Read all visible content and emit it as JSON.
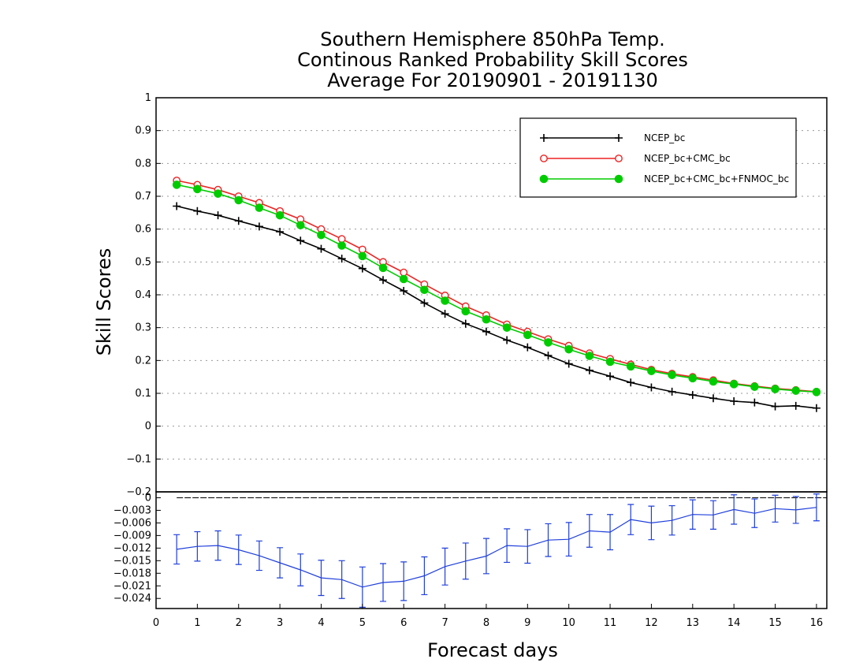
{
  "title_lines": [
    "Southern Hemisphere 850hPa Temp.",
    "Continous Ranked Probability Skill Scores",
    "Average For 20190901 - 20191130"
  ],
  "chart_data": [
    {
      "type": "line",
      "panel": "main",
      "xlabel": "Forecast days",
      "ylabel": "Skill Scores",
      "xlim": [
        0,
        16.25
      ],
      "ylim": [
        -0.2,
        1
      ],
      "y_ticks": [
        "-0.2",
        "-0.1",
        "0",
        "0.1",
        "0.2",
        "0.3",
        "0.4",
        "0.5",
        "0.6",
        "0.7",
        "0.8",
        "0.9",
        "1"
      ],
      "grid": "horizontal dotted",
      "legend_position": "top-right",
      "x": [
        0.5,
        1,
        1.5,
        2,
        2.5,
        3,
        3.5,
        4,
        4.5,
        5,
        5.5,
        6,
        6.5,
        7,
        7.5,
        8,
        8.5,
        9,
        9.5,
        10,
        10.5,
        11,
        11.5,
        12,
        12.5,
        13,
        13.5,
        14,
        14.5,
        15,
        15.5,
        16
      ],
      "series": [
        {
          "name": "NCEP_bc",
          "color": "#000000",
          "marker": "plus",
          "values": [
            0.67,
            0.655,
            0.642,
            0.625,
            0.608,
            0.592,
            0.565,
            0.54,
            0.51,
            0.48,
            0.445,
            0.412,
            0.375,
            0.342,
            0.312,
            0.288,
            0.262,
            0.24,
            0.215,
            0.19,
            0.17,
            0.152,
            0.133,
            0.118,
            0.105,
            0.095,
            0.085,
            0.076,
            0.072,
            0.06,
            0.062,
            0.055
          ]
        },
        {
          "name": "NCEP_bc+CMC_bc",
          "color": "#ee2222",
          "marker": "open-circle",
          "values": [
            0.748,
            0.735,
            0.72,
            0.7,
            0.68,
            0.655,
            0.63,
            0.6,
            0.57,
            0.538,
            0.5,
            0.468,
            0.432,
            0.398,
            0.365,
            0.338,
            0.31,
            0.288,
            0.265,
            0.245,
            0.222,
            0.205,
            0.188,
            0.172,
            0.16,
            0.15,
            0.14,
            0.13,
            0.122,
            0.115,
            0.11,
            0.105
          ]
        },
        {
          "name": "NCEP_bc+CMC_bc+FNMOC_bc",
          "color": "#00cc00",
          "marker": "filled-circle",
          "values": [
            0.735,
            0.722,
            0.708,
            0.688,
            0.665,
            0.642,
            0.612,
            0.582,
            0.55,
            0.518,
            0.482,
            0.448,
            0.415,
            0.382,
            0.35,
            0.325,
            0.3,
            0.278,
            0.255,
            0.234,
            0.214,
            0.196,
            0.182,
            0.168,
            0.156,
            0.146,
            0.136,
            0.128,
            0.12,
            0.113,
            0.108,
            0.104
          ]
        }
      ]
    },
    {
      "type": "line",
      "panel": "difference",
      "xlabel": "Forecast days",
      "ylim": [
        -0.0264,
        0.0014
      ],
      "x_ticks": [
        "0",
        "1",
        "2",
        "3",
        "4",
        "5",
        "6",
        "7",
        "8",
        "9",
        "10",
        "11",
        "12",
        "13",
        "14",
        "15",
        "16"
      ],
      "y_ticks": [
        "0",
        "-0.003",
        "-0.006",
        "-0.009",
        "-0.012",
        "-0.015",
        "-0.018",
        "-0.021",
        "-0.024"
      ],
      "zero_line": "dashed",
      "x": [
        0.5,
        1,
        1.5,
        2,
        2.5,
        3,
        3.5,
        4,
        4.5,
        5,
        5.5,
        6,
        6.5,
        7,
        7.5,
        8,
        8.5,
        9,
        9.5,
        10,
        10.5,
        11,
        11.5,
        12,
        12.5,
        13,
        13.5,
        14,
        14.5,
        15,
        15.5,
        16
      ],
      "series": [
        {
          "color": "#1f3fdc",
          "marker": "error-bar",
          "values": [
            -0.0123,
            -0.0116,
            -0.0114,
            -0.0124,
            -0.0138,
            -0.0155,
            -0.0172,
            -0.0191,
            -0.0195,
            -0.0213,
            -0.0202,
            -0.0199,
            -0.0186,
            -0.0164,
            -0.0151,
            -0.0139,
            -0.0114,
            -0.0116,
            -0.0101,
            -0.0099,
            -0.0079,
            -0.0082,
            -0.0052,
            -0.006,
            -0.0054,
            -0.004,
            -0.0041,
            -0.0028,
            -0.0037,
            -0.0026,
            -0.0029,
            -0.0023
          ],
          "error": [
            0.0035,
            0.0035,
            0.0035,
            0.0035,
            0.0035,
            0.0036,
            0.0038,
            0.0042,
            0.0045,
            0.0048,
            0.0045,
            0.0046,
            0.0045,
            0.0044,
            0.0043,
            0.0042,
            0.004,
            0.004,
            0.0039,
            0.004,
            0.0039,
            0.0042,
            0.0036,
            0.004,
            0.0035,
            0.0035,
            0.0034,
            0.0035,
            0.0034,
            0.0032,
            0.0032,
            0.0032
          ]
        }
      ]
    }
  ]
}
